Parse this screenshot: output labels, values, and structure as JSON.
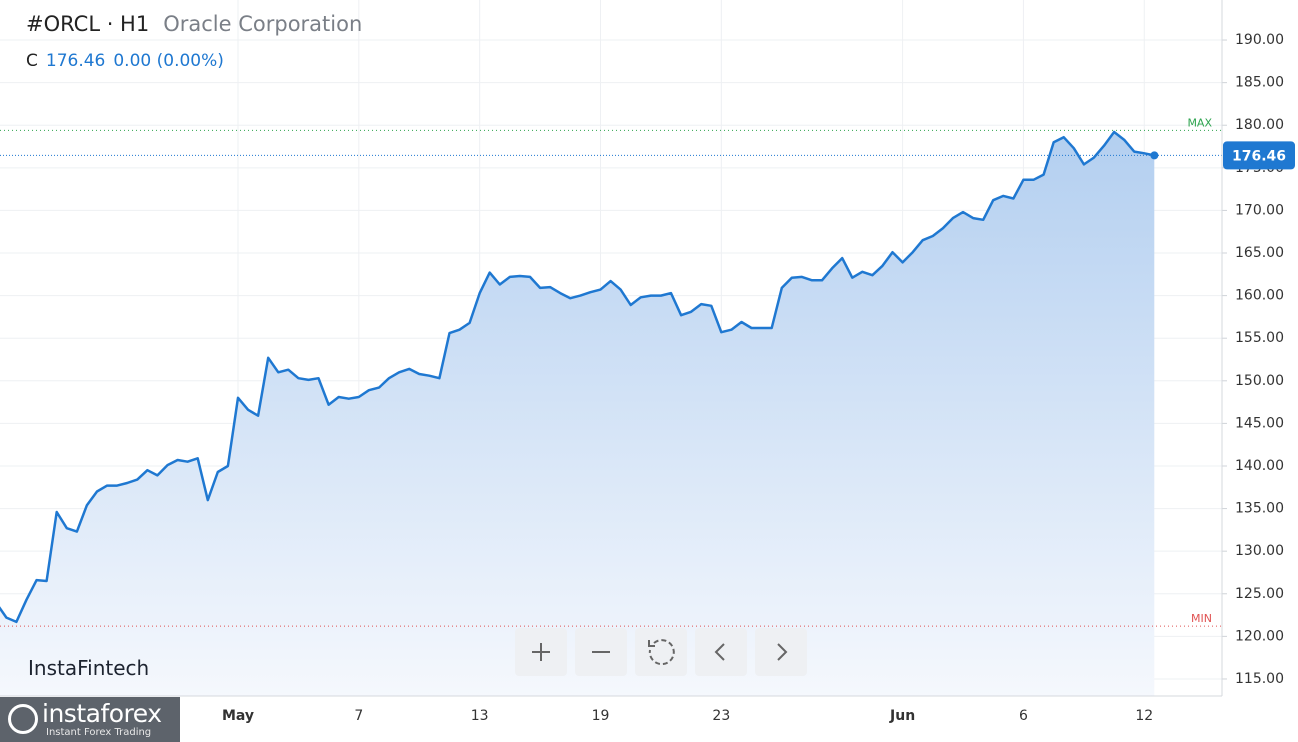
{
  "chart_data": {
    "type": "line",
    "symbol": "#ORCL · H1",
    "name": "Oracle Corporation",
    "close_label": "C",
    "close": 176.46,
    "change": "0.00 (0.00%)",
    "categories": [
      null,
      null,
      null,
      null,
      null,
      null,
      null,
      null,
      null,
      null,
      null,
      null,
      null,
      null,
      null,
      null,
      null,
      null,
      null,
      null,
      null,
      null,
      null,
      null,
      "May",
      null,
      null,
      null,
      null,
      null,
      null,
      null,
      null,
      null,
      null,
      null,
      "7",
      null,
      null,
      null,
      null,
      null,
      null,
      null,
      null,
      null,
      null,
      null,
      "13",
      null,
      null,
      null,
      null,
      null,
      null,
      null,
      null,
      null,
      null,
      null,
      "19",
      null,
      null,
      null,
      null,
      null,
      null,
      null,
      null,
      null,
      null,
      null,
      "23",
      null,
      null,
      null,
      null,
      null,
      null,
      null,
      null,
      null,
      null,
      null,
      null,
      null,
      null,
      null,
      null,
      null,
      "Jun",
      null,
      null,
      null,
      null,
      null,
      null,
      null,
      null,
      null,
      null,
      null,
      "6",
      null,
      null,
      null,
      null,
      null,
      null,
      null,
      null,
      null,
      null,
      null,
      "12",
      null
    ],
    "series": [
      {
        "color": "#1f78d1",
        "values": [
          123.9,
          122.2,
          121.7,
          124.3,
          126.6,
          126.5,
          134.6,
          132.7,
          132.3,
          135.4,
          137.0,
          137.7,
          137.7,
          138.0,
          138.4,
          139.5,
          138.9,
          140.1,
          140.7,
          140.5,
          140.9,
          136.0,
          139.3,
          140.0,
          148.0,
          146.6,
          145.9,
          152.7,
          151.0,
          151.3,
          150.3,
          150.1,
          150.3,
          147.2,
          148.1,
          147.9,
          148.1,
          148.9,
          149.2,
          150.3,
          151.0,
          151.4,
          150.8,
          150.6,
          150.3,
          155.6,
          156.0,
          156.8,
          160.3,
          162.7,
          161.3,
          162.2,
          162.3,
          162.2,
          160.9,
          161.0,
          160.3,
          159.7,
          160.0,
          160.4,
          160.7,
          161.7,
          160.7,
          158.9,
          159.8,
          160.0,
          160.0,
          160.3,
          157.7,
          158.1,
          159.0,
          158.8,
          155.7,
          156.0,
          156.9,
          156.2,
          156.2,
          156.2,
          160.9,
          162.1,
          162.2,
          161.8,
          161.8,
          163.2,
          164.4,
          162.1,
          162.8,
          162.4,
          163.5,
          165.1,
          163.9,
          165.1,
          166.5,
          167.0,
          167.9,
          169.1,
          169.8,
          169.1,
          168.9,
          171.2,
          171.7,
          171.4,
          173.6,
          173.6,
          174.2,
          178.0,
          178.6,
          177.3,
          175.4,
          176.2,
          177.6,
          179.2,
          178.3,
          176.9,
          176.7,
          176.46
        ]
      }
    ],
    "ylim": [
      113.0,
      194.7
    ],
    "yticks": [
      {
        "value": 115,
        "label": "115.00"
      },
      {
        "value": 120,
        "label": "120.00"
      },
      {
        "value": 125,
        "label": "125.00"
      },
      {
        "value": 130,
        "label": "130.00"
      },
      {
        "value": 135,
        "label": "135.00"
      },
      {
        "value": 140,
        "label": "140.00"
      },
      {
        "value": 145,
        "label": "145.00"
      },
      {
        "value": 150,
        "label": "150.00"
      },
      {
        "value": 155,
        "label": "155.00"
      },
      {
        "value": 160,
        "label": "160.00"
      },
      {
        "value": 165,
        "label": "165.00"
      },
      {
        "value": 170,
        "label": "170.00"
      },
      {
        "value": 175,
        "label": "175.00"
      },
      {
        "value": 180,
        "label": "180.00"
      },
      {
        "value": 185,
        "label": "185.00"
      },
      {
        "value": 190,
        "label": "190.00"
      }
    ],
    "grid": true,
    "levels": [
      {
        "label": "MAX",
        "value": 179.4,
        "color": "#2ea44f"
      },
      {
        "label": "MIN",
        "value": 121.2,
        "color": "#e05252"
      }
    ]
  },
  "branding": {
    "fintech": "InstaFintech",
    "logo": "instaforex",
    "tagline": "Instant Forex Trading"
  }
}
